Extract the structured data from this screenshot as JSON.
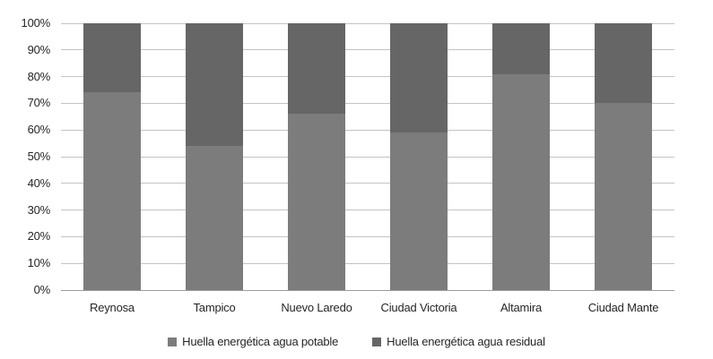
{
  "chart_data": {
    "type": "bar",
    "stacked": true,
    "percent_stacked": true,
    "title": "",
    "xlabel": "",
    "ylabel": "",
    "categories": [
      "Reynosa",
      "Tampico",
      "Nuevo Laredo",
      "Ciudad Victoria",
      "Altamira",
      "Ciudad Mante"
    ],
    "series": [
      {
        "name": "Huella energética agua potable",
        "color": "#7C7C7C",
        "values": [
          74,
          54,
          66,
          59,
          81,
          70
        ]
      },
      {
        "name": "Huella energética agua residual",
        "color": "#666666",
        "values": [
          26,
          46,
          34,
          41,
          19,
          30
        ]
      }
    ],
    "yticks": [
      "0%",
      "10%",
      "20%",
      "30%",
      "40%",
      "50%",
      "60%",
      "70%",
      "80%",
      "90%",
      "100%"
    ],
    "ylim": [
      0,
      100
    ],
    "grid": true,
    "gridline_color": "#c4c4c4",
    "axis_line_color": "#9b9b9b",
    "legend_position": "bottom"
  }
}
